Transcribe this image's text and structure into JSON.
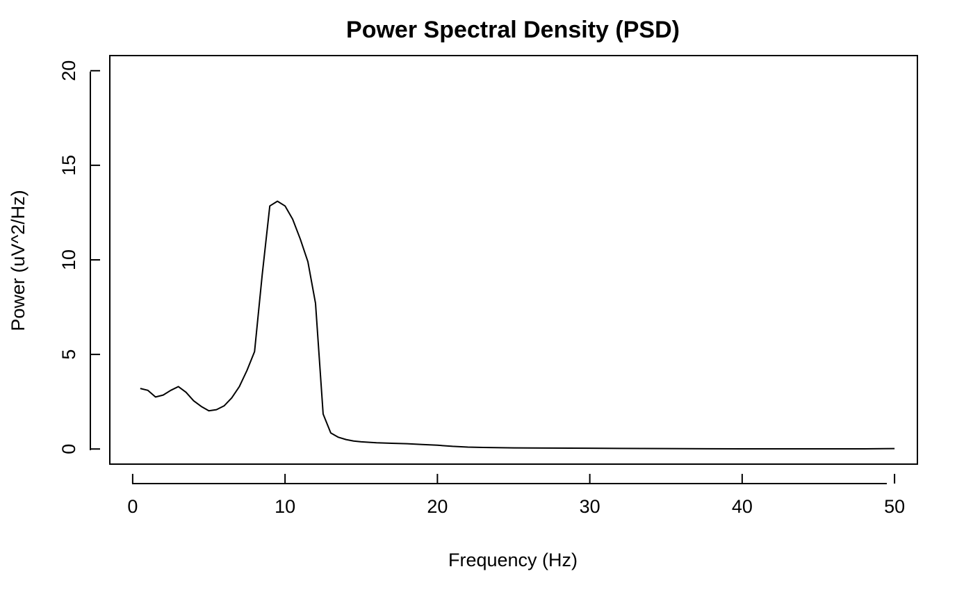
{
  "chart_data": {
    "type": "line",
    "title": "Power Spectral Density (PSD)",
    "xlabel": "Frequency (Hz)",
    "ylabel": "Power (uV^2/Hz)",
    "xlim": [
      -1.5,
      51.5
    ],
    "ylim": [
      -0.8,
      20.8
    ],
    "x_ticks": [
      0,
      10,
      20,
      30,
      40,
      50
    ],
    "y_ticks": [
      0,
      5,
      10,
      15,
      20
    ],
    "x_tick_labels": [
      "0",
      "10",
      "20",
      "30",
      "40",
      "50"
    ],
    "y_tick_labels": [
      "0",
      "5",
      "10",
      "15",
      "20"
    ],
    "grid": false,
    "line_color": "#000000",
    "series": [
      {
        "x": [
          0.5,
          1,
          1.5,
          2,
          2.5,
          3,
          3.5,
          4,
          4.5,
          5,
          5.5,
          6,
          6.5,
          7,
          7.5,
          8,
          8.5,
          9,
          9.5,
          10,
          10.5,
          11,
          11.5,
          12,
          12.5,
          13,
          13.5,
          14,
          14.5,
          15,
          16,
          17,
          18,
          19,
          20,
          21,
          22,
          23,
          25,
          30,
          35,
          40,
          45,
          48,
          50
        ],
        "y": [
          3.2,
          3.1,
          2.75,
          2.85,
          3.1,
          3.3,
          3.0,
          2.55,
          2.25,
          2.02,
          2.08,
          2.28,
          2.7,
          3.3,
          4.15,
          5.15,
          9.2,
          12.85,
          13.1,
          12.85,
          12.15,
          11.1,
          9.9,
          7.7,
          1.85,
          0.85,
          0.62,
          0.5,
          0.42,
          0.38,
          0.33,
          0.3,
          0.28,
          0.24,
          0.2,
          0.14,
          0.1,
          0.08,
          0.06,
          0.04,
          0.02,
          0.01,
          0.01,
          0.01,
          0.02
        ]
      }
    ]
  }
}
